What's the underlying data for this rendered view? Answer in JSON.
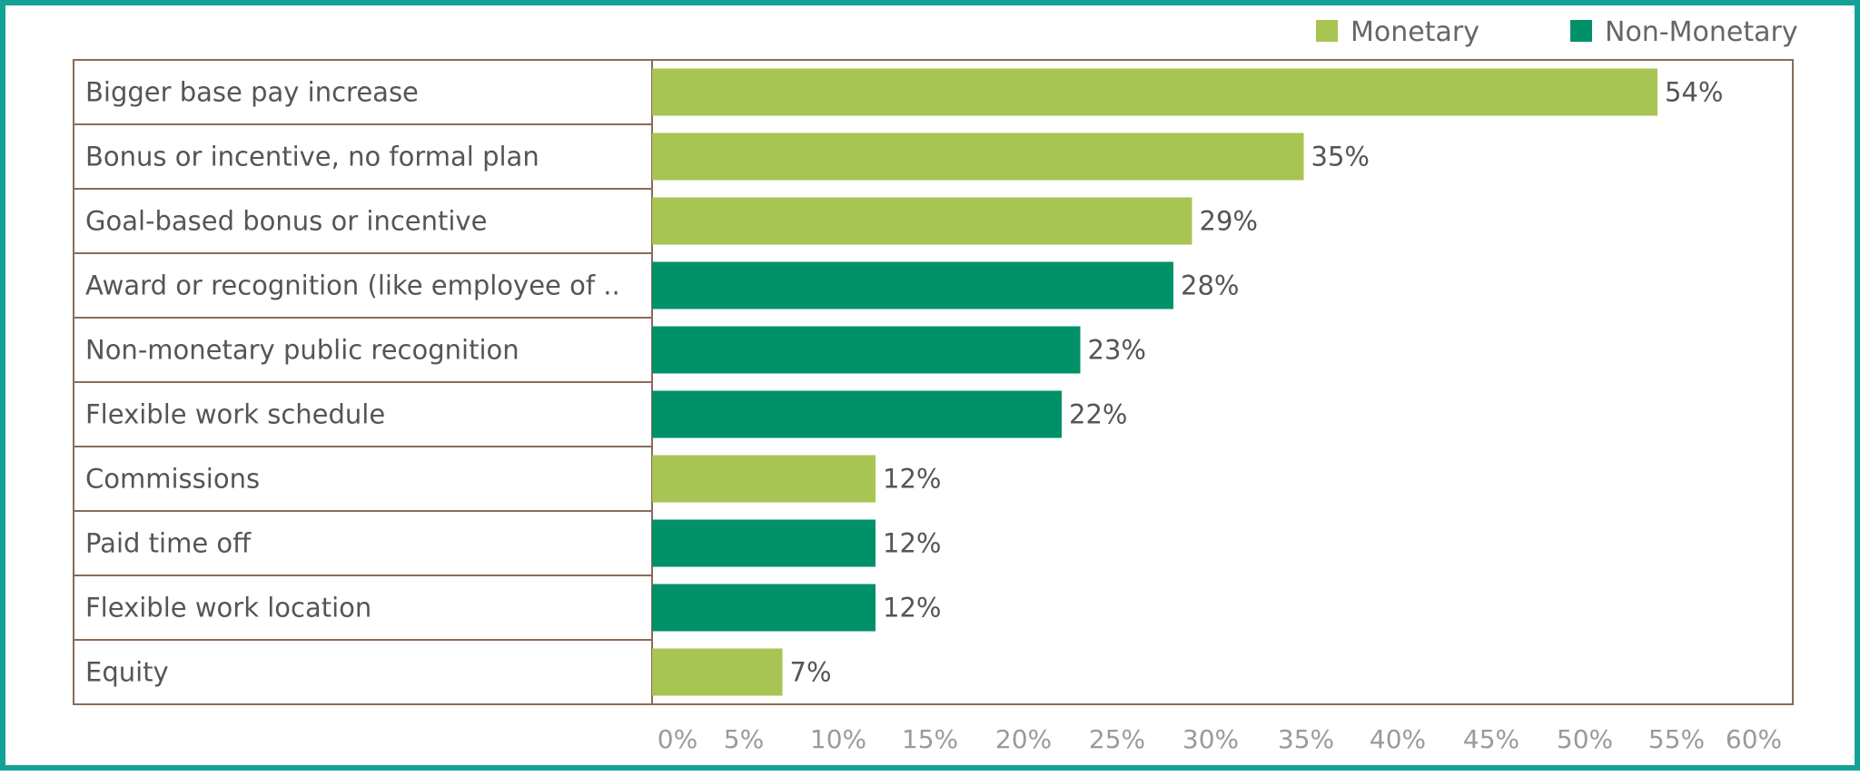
{
  "chart_data": {
    "type": "bar",
    "orientation": "horizontal",
    "title": "",
    "xlabel": "",
    "ylabel": "",
    "xlim": [
      0,
      60
    ],
    "ticks": [
      "0%",
      "5%",
      "10%",
      "15%",
      "20%",
      "25%",
      "30%",
      "35%",
      "40%",
      "45%",
      "50%",
      "55%",
      "60%"
    ],
    "legend": {
      "placement": "top-right",
      "items": [
        {
          "name": "Monetary",
          "color": "#a8c453"
        },
        {
          "name": "Non-Monetary",
          "color": "#009169"
        }
      ]
    },
    "bars": [
      {
        "category": "Bigger base pay increase",
        "value": 54,
        "label": "54%",
        "group": "Monetary"
      },
      {
        "category": "Bonus or incentive, no formal plan",
        "value": 35,
        "label": "35%",
        "group": "Monetary"
      },
      {
        "category": "Goal-based bonus or incentive",
        "value": 29,
        "label": "29%",
        "group": "Monetary"
      },
      {
        "category": "Award or recognition (like employee of ..",
        "value": 28,
        "label": "28%",
        "group": "Non-Monetary"
      },
      {
        "category": "Non-monetary public recognition",
        "value": 23,
        "label": "23%",
        "group": "Non-Monetary"
      },
      {
        "category": "Flexible work schedule",
        "value": 22,
        "label": "22%",
        "group": "Non-Monetary"
      },
      {
        "category": "Commissions",
        "value": 12,
        "label": "12%",
        "group": "Monetary"
      },
      {
        "category": "Paid time off",
        "value": 12,
        "label": "12%",
        "group": "Non-Monetary"
      },
      {
        "category": "Flexible work location",
        "value": 12,
        "label": "12%",
        "group": "Non-Monetary"
      },
      {
        "category": "Equity",
        "value": 7,
        "label": "7%",
        "group": "Monetary"
      }
    ]
  },
  "colors": {
    "frame_border": "#14a197",
    "axis_border": "#8b6b57",
    "row_divider": "#8b6b57"
  }
}
